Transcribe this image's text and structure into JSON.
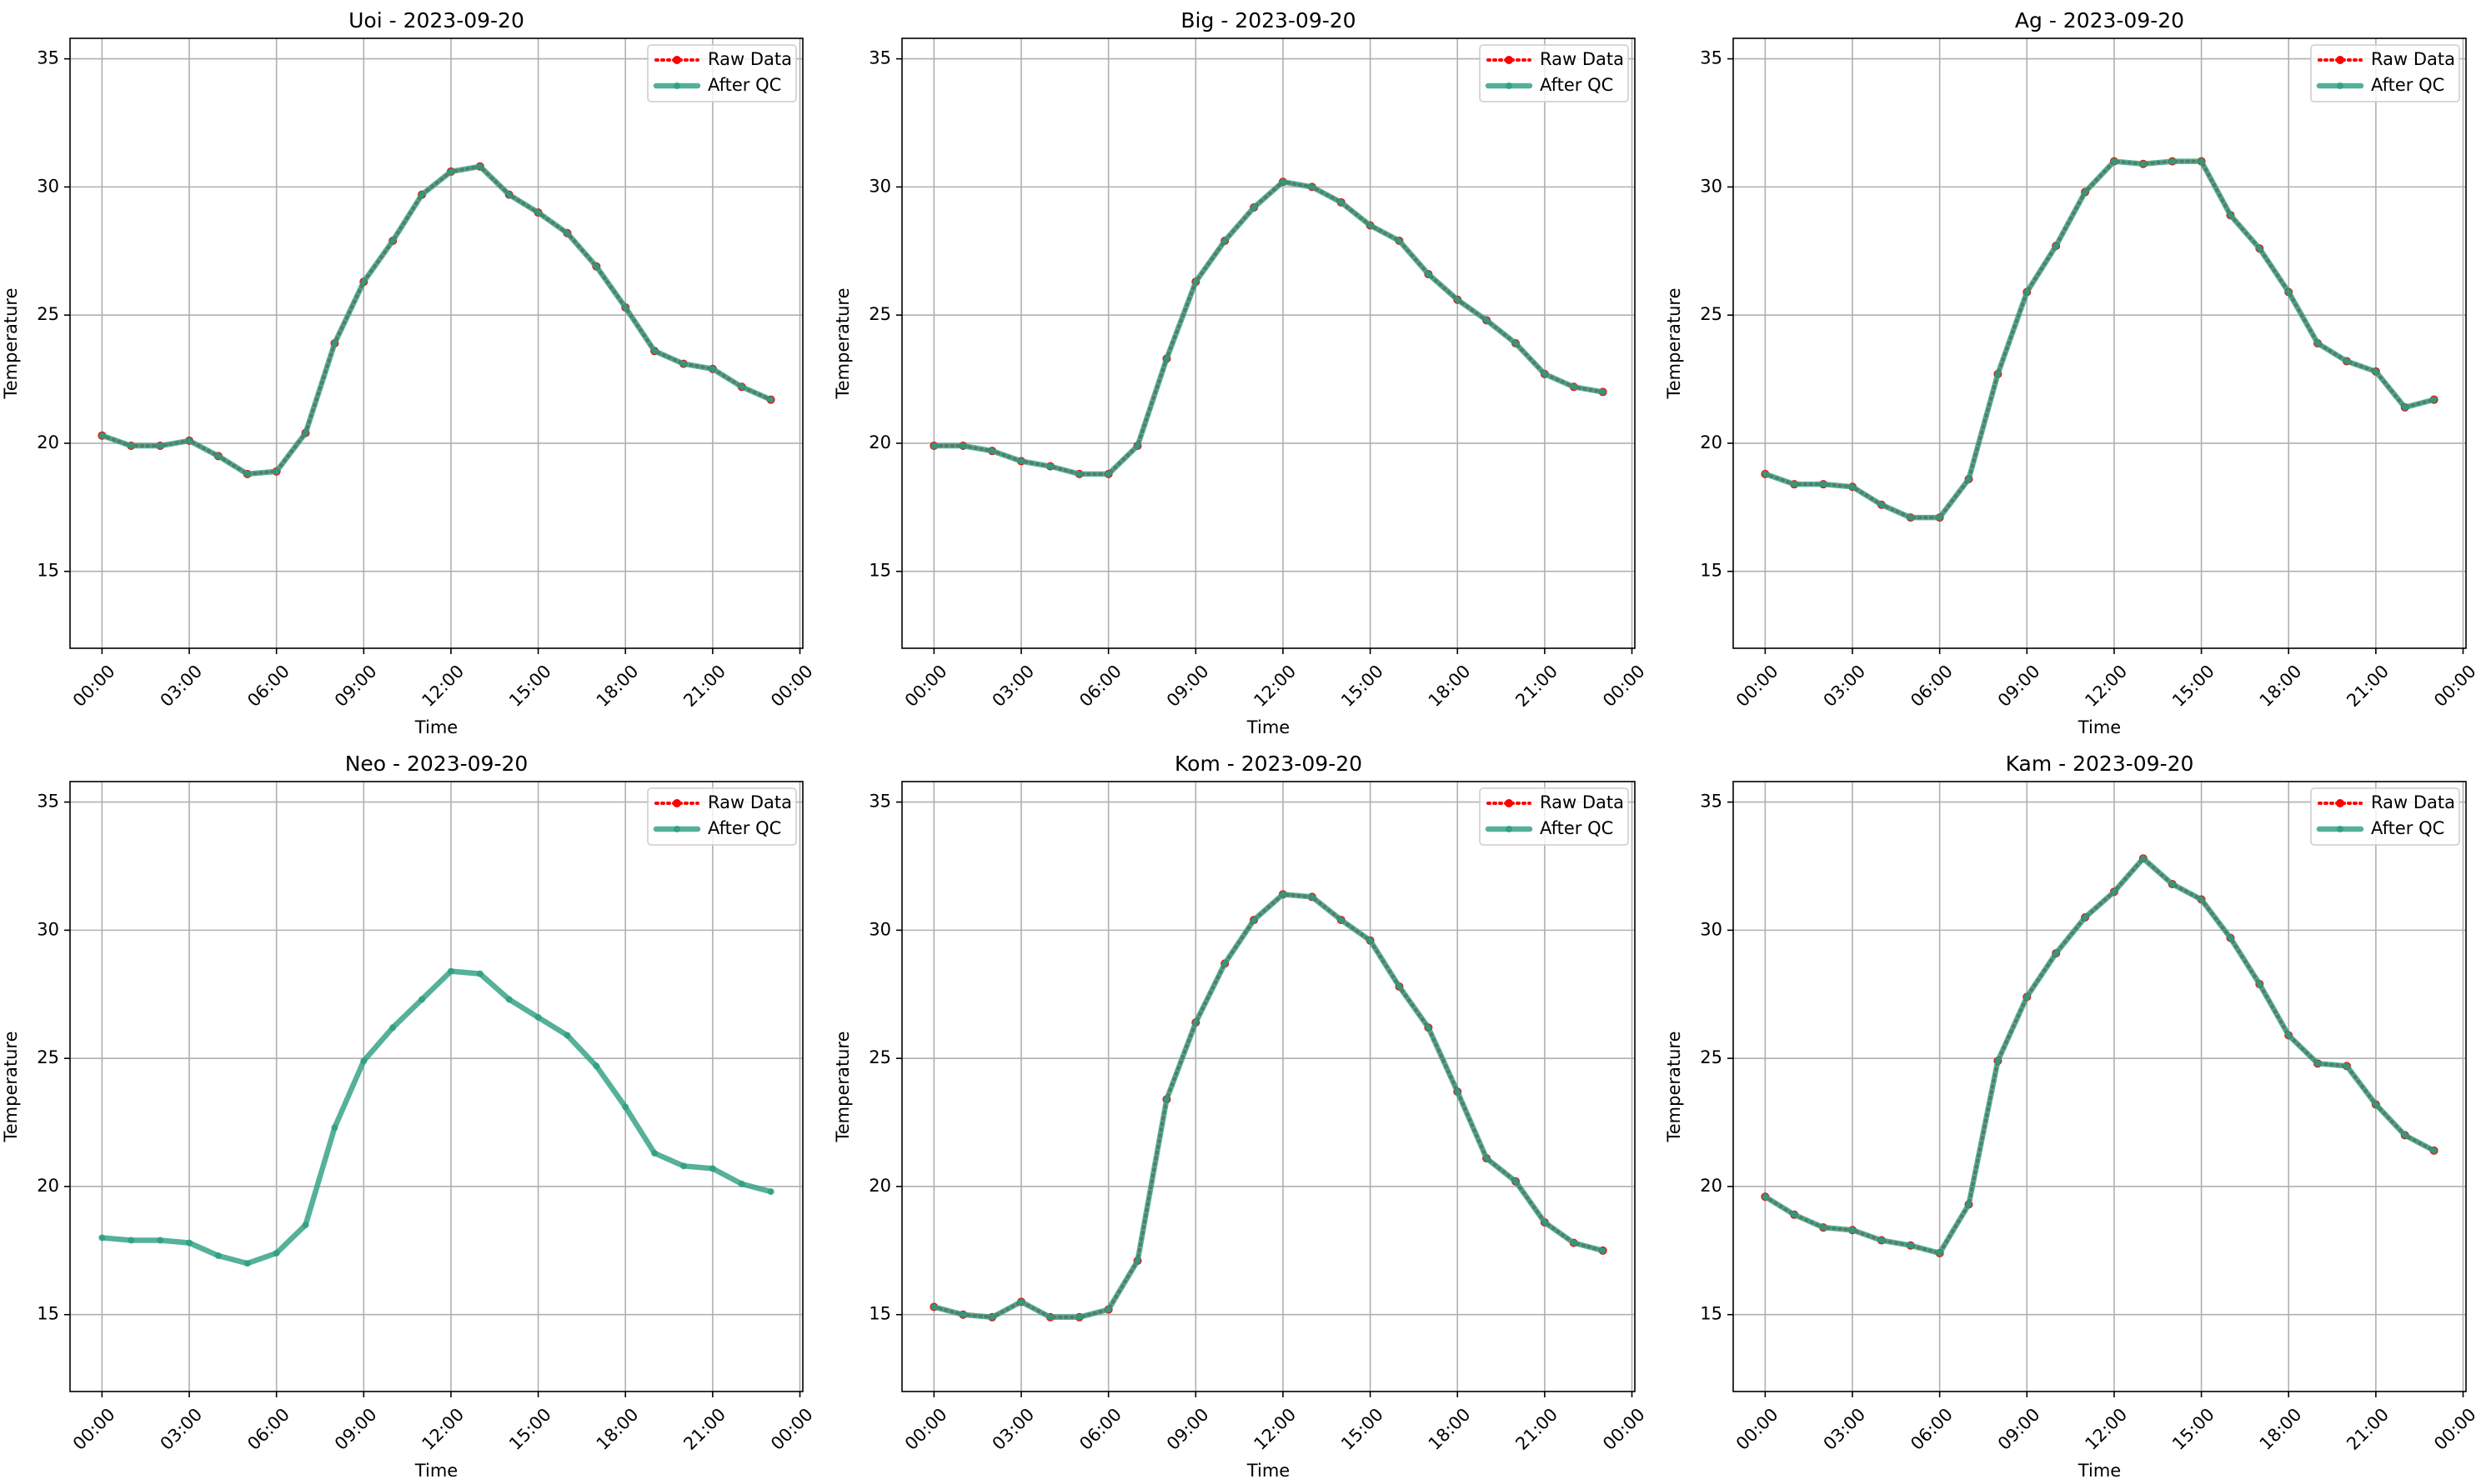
{
  "chart_data": [
    {
      "type": "line",
      "title": "Uoi - 2023-09-20",
      "xlabel": "Time",
      "ylabel": "Temperature",
      "x": [
        0,
        1,
        2,
        3,
        4,
        5,
        6,
        7,
        8,
        9,
        10,
        11,
        12,
        13,
        14,
        15,
        16,
        17,
        18,
        19,
        20,
        21,
        22,
        23
      ],
      "xlim": [
        -1.1,
        24.1
      ],
      "xticks": [
        {
          "value": 0,
          "label": "00:00"
        },
        {
          "value": 3,
          "label": "03:00"
        },
        {
          "value": 6,
          "label": "06:00"
        },
        {
          "value": 9,
          "label": "09:00"
        },
        {
          "value": 12,
          "label": "12:00"
        },
        {
          "value": 15,
          "label": "15:00"
        },
        {
          "value": 18,
          "label": "18:00"
        },
        {
          "value": 21,
          "label": "21:00"
        },
        {
          "value": 24,
          "label": "00:00"
        }
      ],
      "ylim": [
        12.0,
        35.8
      ],
      "yticks": [
        15,
        20,
        25,
        30,
        35
      ],
      "grid": true,
      "legend": "upper right",
      "series": [
        {
          "name": "Raw Data",
          "color": "#ff0000",
          "values": [
            20.3,
            19.9,
            19.9,
            20.1,
            19.5,
            18.8,
            18.9,
            20.4,
            23.9,
            26.3,
            27.9,
            29.7,
            30.6,
            30.8,
            29.7,
            29.0,
            28.2,
            26.9,
            25.3,
            23.6,
            23.1,
            22.9,
            22.2,
            21.7
          ]
        },
        {
          "name": "After QC",
          "color": "#2a9d7f",
          "values": [
            20.3,
            19.9,
            19.9,
            20.1,
            19.5,
            18.8,
            18.9,
            20.4,
            23.9,
            26.3,
            27.9,
            29.7,
            30.6,
            30.8,
            29.7,
            29.0,
            28.2,
            26.9,
            25.3,
            23.6,
            23.1,
            22.9,
            22.2,
            21.7
          ]
        }
      ]
    },
    {
      "type": "line",
      "title": "Big - 2023-09-20",
      "xlabel": "Time",
      "ylabel": "Temperature",
      "x": [
        0,
        1,
        2,
        3,
        4,
        5,
        6,
        7,
        8,
        9,
        10,
        11,
        12,
        13,
        14,
        15,
        16,
        17,
        18,
        19,
        20,
        21,
        22,
        23
      ],
      "xlim": [
        -1.1,
        24.1
      ],
      "xticks": [
        {
          "value": 0,
          "label": "00:00"
        },
        {
          "value": 3,
          "label": "03:00"
        },
        {
          "value": 6,
          "label": "06:00"
        },
        {
          "value": 9,
          "label": "09:00"
        },
        {
          "value": 12,
          "label": "12:00"
        },
        {
          "value": 15,
          "label": "15:00"
        },
        {
          "value": 18,
          "label": "18:00"
        },
        {
          "value": 21,
          "label": "21:00"
        },
        {
          "value": 24,
          "label": "00:00"
        }
      ],
      "ylim": [
        12.0,
        35.8
      ],
      "yticks": [
        15,
        20,
        25,
        30,
        35
      ],
      "grid": true,
      "legend": "upper right",
      "series": [
        {
          "name": "Raw Data",
          "color": "#ff0000",
          "values": [
            19.9,
            19.9,
            19.7,
            19.3,
            19.1,
            18.8,
            18.8,
            19.9,
            23.3,
            26.3,
            27.9,
            29.2,
            30.2,
            30.0,
            29.4,
            28.5,
            27.9,
            26.6,
            25.6,
            24.8,
            23.9,
            22.7,
            22.2,
            22.0
          ]
        },
        {
          "name": "After QC",
          "color": "#2a9d7f",
          "values": [
            19.9,
            19.9,
            19.7,
            19.3,
            19.1,
            18.8,
            18.8,
            19.9,
            23.3,
            26.3,
            27.9,
            29.2,
            30.2,
            30.0,
            29.4,
            28.5,
            27.9,
            26.6,
            25.6,
            24.8,
            23.9,
            22.7,
            22.2,
            22.0
          ]
        }
      ]
    },
    {
      "type": "line",
      "title": "Ag - 2023-09-20",
      "xlabel": "Time",
      "ylabel": "Temperature",
      "x": [
        0,
        1,
        2,
        3,
        4,
        5,
        6,
        7,
        8,
        9,
        10,
        11,
        12,
        13,
        14,
        15,
        16,
        17,
        18,
        19,
        20,
        21,
        22,
        23
      ],
      "xlim": [
        -1.1,
        24.1
      ],
      "xticks": [
        {
          "value": 0,
          "label": "00:00"
        },
        {
          "value": 3,
          "label": "03:00"
        },
        {
          "value": 6,
          "label": "06:00"
        },
        {
          "value": 9,
          "label": "09:00"
        },
        {
          "value": 12,
          "label": "12:00"
        },
        {
          "value": 15,
          "label": "15:00"
        },
        {
          "value": 18,
          "label": "18:00"
        },
        {
          "value": 21,
          "label": "21:00"
        },
        {
          "value": 24,
          "label": "00:00"
        }
      ],
      "ylim": [
        12.0,
        35.8
      ],
      "yticks": [
        15,
        20,
        25,
        30,
        35
      ],
      "grid": true,
      "legend": "upper right",
      "series": [
        {
          "name": "Raw Data",
          "color": "#ff0000",
          "values": [
            18.8,
            18.4,
            18.4,
            18.3,
            17.6,
            17.1,
            17.1,
            18.6,
            22.7,
            25.9,
            27.7,
            29.8,
            31.0,
            30.9,
            31.0,
            31.0,
            28.9,
            27.6,
            25.9,
            23.9,
            23.2,
            22.8,
            21.4,
            21.7
          ]
        },
        {
          "name": "After QC",
          "color": "#2a9d7f",
          "values": [
            18.8,
            18.4,
            18.4,
            18.3,
            17.6,
            17.1,
            17.1,
            18.6,
            22.7,
            25.9,
            27.7,
            29.8,
            31.0,
            30.9,
            31.0,
            31.0,
            28.9,
            27.6,
            25.9,
            23.9,
            23.2,
            22.8,
            21.4,
            21.7
          ]
        }
      ]
    },
    {
      "type": "line",
      "title": "Neo - 2023-09-20",
      "xlabel": "Time",
      "ylabel": "Temperature",
      "x": [
        0,
        1,
        2,
        3,
        4,
        5,
        6,
        7,
        8,
        9,
        10,
        11,
        12,
        13,
        14,
        15,
        16,
        17,
        18,
        19,
        20,
        21,
        22,
        23
      ],
      "xlim": [
        -1.1,
        24.1
      ],
      "xticks": [
        {
          "value": 0,
          "label": "00:00"
        },
        {
          "value": 3,
          "label": "03:00"
        },
        {
          "value": 6,
          "label": "06:00"
        },
        {
          "value": 9,
          "label": "09:00"
        },
        {
          "value": 12,
          "label": "12:00"
        },
        {
          "value": 15,
          "label": "15:00"
        },
        {
          "value": 18,
          "label": "18:00"
        },
        {
          "value": 21,
          "label": "21:00"
        },
        {
          "value": 24,
          "label": "00:00"
        }
      ],
      "ylim": [
        12.0,
        35.8
      ],
      "yticks": [
        15,
        20,
        25,
        30,
        35
      ],
      "grid": true,
      "legend": "upper right",
      "series": [
        {
          "name": "Raw Data",
          "color": "#ff0000",
          "values": [
            null,
            null,
            null,
            null,
            null,
            null,
            null,
            null,
            null,
            null,
            null,
            null,
            null,
            null,
            null,
            null,
            null,
            null,
            null,
            null,
            null,
            null,
            null,
            null
          ]
        },
        {
          "name": "After QC",
          "color": "#2a9d7f",
          "values": [
            18.0,
            17.9,
            17.9,
            17.8,
            17.3,
            17.0,
            17.4,
            18.5,
            22.3,
            24.9,
            26.2,
            27.3,
            28.4,
            28.3,
            27.3,
            26.6,
            25.9,
            24.7,
            23.1,
            21.3,
            20.8,
            20.7,
            20.1,
            19.8
          ]
        }
      ]
    },
    {
      "type": "line",
      "title": "Kom - 2023-09-20",
      "xlabel": "Time",
      "ylabel": "Temperature",
      "x": [
        0,
        1,
        2,
        3,
        4,
        5,
        6,
        7,
        8,
        9,
        10,
        11,
        12,
        13,
        14,
        15,
        16,
        17,
        18,
        19,
        20,
        21,
        22,
        23
      ],
      "xlim": [
        -1.1,
        24.1
      ],
      "xticks": [
        {
          "value": 0,
          "label": "00:00"
        },
        {
          "value": 3,
          "label": "03:00"
        },
        {
          "value": 6,
          "label": "06:00"
        },
        {
          "value": 9,
          "label": "09:00"
        },
        {
          "value": 12,
          "label": "12:00"
        },
        {
          "value": 15,
          "label": "15:00"
        },
        {
          "value": 18,
          "label": "18:00"
        },
        {
          "value": 21,
          "label": "21:00"
        },
        {
          "value": 24,
          "label": "00:00"
        }
      ],
      "ylim": [
        12.0,
        35.8
      ],
      "yticks": [
        15,
        20,
        25,
        30,
        35
      ],
      "grid": true,
      "legend": "upper right",
      "series": [
        {
          "name": "Raw Data",
          "color": "#ff0000",
          "values": [
            15.3,
            15.0,
            14.9,
            15.5,
            14.9,
            14.9,
            15.2,
            17.1,
            23.4,
            26.4,
            28.7,
            30.4,
            31.4,
            31.3,
            30.4,
            29.6,
            27.8,
            26.2,
            23.7,
            21.1,
            20.2,
            18.6,
            17.8,
            17.5
          ]
        },
        {
          "name": "After QC",
          "color": "#2a9d7f",
          "values": [
            15.3,
            15.0,
            14.9,
            15.5,
            14.9,
            14.9,
            15.2,
            17.1,
            23.4,
            26.4,
            28.7,
            30.4,
            31.4,
            31.3,
            30.4,
            29.6,
            27.8,
            26.2,
            23.7,
            21.1,
            20.2,
            18.6,
            17.8,
            17.5
          ]
        }
      ]
    },
    {
      "type": "line",
      "title": "Kam - 2023-09-20",
      "xlabel": "Time",
      "ylabel": "Temperature",
      "x": [
        0,
        1,
        2,
        3,
        4,
        5,
        6,
        7,
        8,
        9,
        10,
        11,
        12,
        13,
        14,
        15,
        16,
        17,
        18,
        19,
        20,
        21,
        22,
        23
      ],
      "xlim": [
        -1.1,
        24.1
      ],
      "xticks": [
        {
          "value": 0,
          "label": "00:00"
        },
        {
          "value": 3,
          "label": "03:00"
        },
        {
          "value": 6,
          "label": "06:00"
        },
        {
          "value": 9,
          "label": "09:00"
        },
        {
          "value": 12,
          "label": "12:00"
        },
        {
          "value": 15,
          "label": "15:00"
        },
        {
          "value": 18,
          "label": "18:00"
        },
        {
          "value": 21,
          "label": "21:00"
        },
        {
          "value": 24,
          "label": "00:00"
        }
      ],
      "ylim": [
        12.0,
        35.8
      ],
      "yticks": [
        15,
        20,
        25,
        30,
        35
      ],
      "grid": true,
      "legend": "upper right",
      "series": [
        {
          "name": "Raw Data",
          "color": "#ff0000",
          "values": [
            19.6,
            18.9,
            18.4,
            18.3,
            17.9,
            17.7,
            17.4,
            19.3,
            24.9,
            27.4,
            29.1,
            30.5,
            31.5,
            32.8,
            31.8,
            31.2,
            29.7,
            27.9,
            25.9,
            24.8,
            24.7,
            23.2,
            22.0,
            21.4
          ]
        },
        {
          "name": "After QC",
          "color": "#2a9d7f",
          "values": [
            19.6,
            18.9,
            18.4,
            18.3,
            17.9,
            17.7,
            17.4,
            19.3,
            24.9,
            27.4,
            29.1,
            30.5,
            31.5,
            32.8,
            31.8,
            31.2,
            29.7,
            27.9,
            25.9,
            24.8,
            24.7,
            23.2,
            22.0,
            21.4
          ]
        }
      ]
    }
  ]
}
